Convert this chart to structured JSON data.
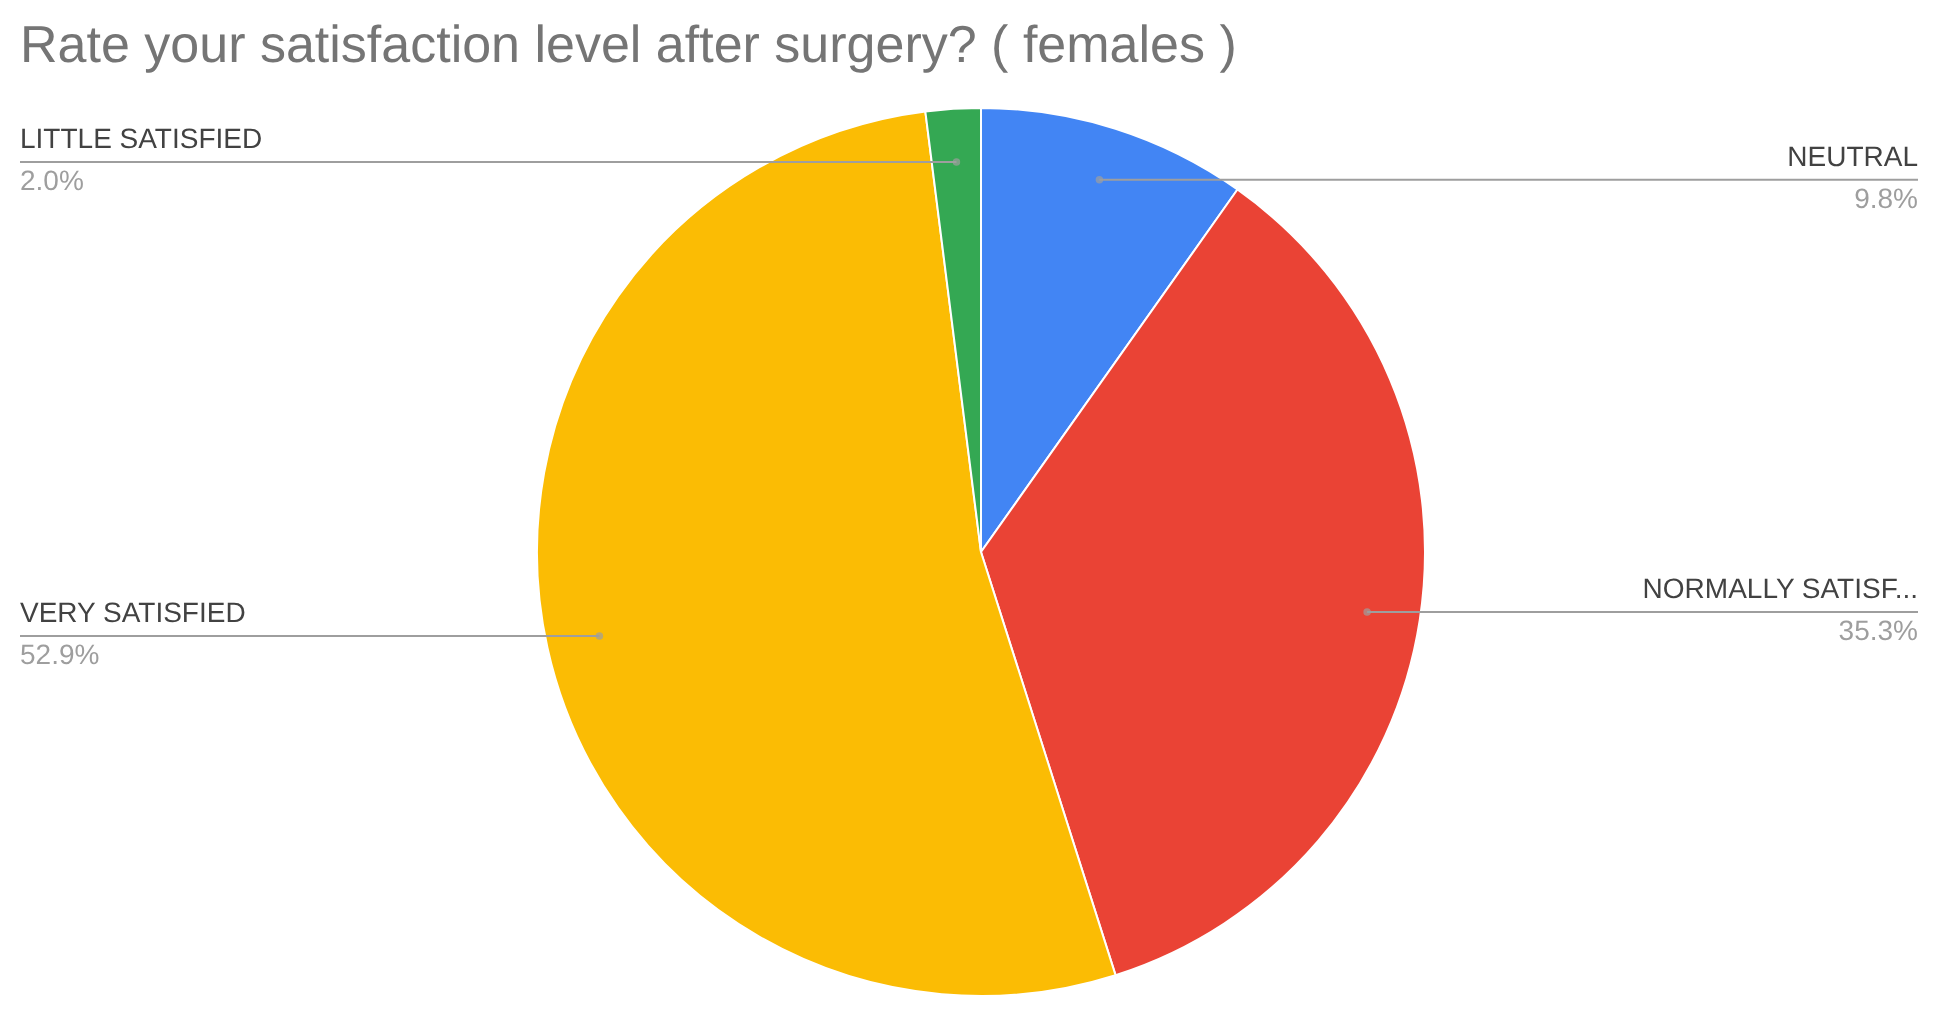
{
  "chart_data": {
    "type": "pie",
    "title": "Rate your satisfaction level after surgery? ( females )",
    "categories": [
      "NEUTRAL",
      "NORMALLY SATISF...",
      "VERY SATISFIED",
      "LITTLE SATISFIED"
    ],
    "values": [
      9.8,
      35.3,
      52.9,
      2.0
    ],
    "value_labels": [
      "9.8%",
      "35.3%",
      "52.9%",
      "2.0%"
    ],
    "colors": [
      "#4285f4",
      "#ea4335",
      "#fbbc04",
      "#34a853"
    ]
  }
}
